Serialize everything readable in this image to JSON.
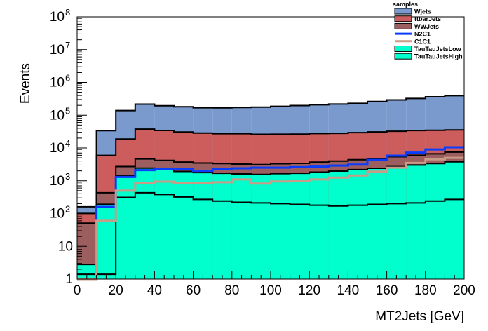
{
  "chart_data": {
    "type": "area",
    "log_y": true,
    "stacked": true,
    "xlabel": "MT2Jets [GeV]",
    "ylabel": "Events",
    "xlim": [
      0,
      200
    ],
    "ylim": [
      1,
      100000000
    ],
    "grid": false,
    "legend_placement": "top-right",
    "legend_title": "samples",
    "bin_edges": [
      0,
      10,
      20,
      30,
      40,
      50,
      60,
      70,
      80,
      90,
      100,
      110,
      120,
      130,
      140,
      150,
      160,
      170,
      180,
      190,
      200
    ],
    "x_ticks": [
      {
        "v": 0,
        "label": "0"
      },
      {
        "v": 20,
        "label": "20"
      },
      {
        "v": 40,
        "label": "40"
      },
      {
        "v": 60,
        "label": "60"
      },
      {
        "v": 80,
        "label": "80"
      },
      {
        "v": 100,
        "label": "100"
      },
      {
        "v": 120,
        "label": "120"
      },
      {
        "v": 140,
        "label": "140"
      },
      {
        "v": 160,
        "label": "160"
      },
      {
        "v": 180,
        "label": "180"
      },
      {
        "v": 200,
        "label": "200"
      }
    ],
    "y_ticks": [
      {
        "v": 1,
        "label": "1",
        "exp": ""
      },
      {
        "v": 10,
        "label": "10",
        "exp": ""
      },
      {
        "v": 100,
        "label": "10",
        "exp": "2"
      },
      {
        "v": 1000,
        "label": "10",
        "exp": "3"
      },
      {
        "v": 10000,
        "label": "10",
        "exp": "4"
      },
      {
        "v": 100000,
        "label": "10",
        "exp": "5"
      },
      {
        "v": 1000000,
        "label": "10",
        "exp": "6"
      },
      {
        "v": 10000000,
        "label": "10",
        "exp": "7"
      },
      {
        "v": 100000000,
        "label": "10",
        "exp": "8"
      }
    ],
    "stack_series": [
      {
        "name": "TauTauJetsHigh",
        "color": "#00ffcc",
        "values": [
          1.4,
          1.4,
          310,
          430,
          380,
          320,
          270,
          240,
          220,
          210,
          200,
          190,
          180,
          170,
          180,
          190,
          200,
          210,
          240,
          270
        ]
      },
      {
        "name": "TauTauJetsLow",
        "color": "#00ffcc",
        "values": [
          1.4,
          190,
          1100,
          2000,
          1800,
          1600,
          1500,
          1450,
          1400,
          1350,
          1450,
          1500,
          1650,
          1800,
          2000,
          2200,
          2500,
          2800,
          3100,
          3500
        ]
      },
      {
        "name": "WWJets",
        "color": "#9c5e5e",
        "values": [
          48,
          240,
          1300,
          2200,
          2000,
          1800,
          1700,
          1650,
          1600,
          1550,
          1650,
          1700,
          1850,
          2000,
          2200,
          2400,
          2700,
          3000,
          3300,
          3700
        ]
      },
      {
        "name": "ttbarJets",
        "color": "#cd5c5c",
        "values": [
          50,
          5500,
          16000,
          33000,
          30000,
          27000,
          25000,
          24000,
          24000,
          23000,
          23000,
          23000,
          24000,
          24000,
          25000,
          26000,
          27000,
          28000,
          28000,
          28000
        ]
      },
      {
        "name": "Wjets",
        "color": "#7a99cd",
        "values": [
          60,
          28000,
          120000,
          180000,
          160000,
          150000,
          140000,
          140000,
          145000,
          150000,
          160000,
          170000,
          180000,
          190000,
          200000,
          230000,
          260000,
          290000,
          330000,
          360000
        ]
      }
    ],
    "line_series": [
      {
        "name": "N2C1",
        "color": "#0a3cff",
        "width": 3,
        "values": [
          0.9,
          160,
          1300,
          2100,
          2300,
          2300,
          2000,
          2300,
          2400,
          2500,
          2500,
          2600,
          2700,
          2900,
          3100,
          4300,
          5800,
          7200,
          9000,
          10500
        ]
      },
      {
        "name": "C1C1",
        "color": "#c89c86",
        "width": 3,
        "values": [
          0.9,
          60,
          500,
          860,
          940,
          860,
          860,
          900,
          1100,
          820,
          950,
          1000,
          1100,
          1250,
          1450,
          1900,
          2500,
          3500,
          4500,
          5000
        ]
      }
    ],
    "legend": [
      {
        "label": "Wjets",
        "kind": "box",
        "fill": "#7a99cd"
      },
      {
        "label": "ttbarJets",
        "kind": "box",
        "fill": "#cd5c5c"
      },
      {
        "label": "WWJets",
        "kind": "box",
        "fill": "#9c5e5e"
      },
      {
        "label": "N2C1",
        "kind": "line",
        "stroke": "#0a3cff"
      },
      {
        "label": "C1C1",
        "kind": "line",
        "stroke": "#c89c86"
      },
      {
        "label": "TauTauJetsLow",
        "kind": "box",
        "fill": "#00ffcc"
      },
      {
        "label": "TauTauJetsHigh",
        "kind": "box",
        "fill": "#00ffcc"
      }
    ]
  }
}
